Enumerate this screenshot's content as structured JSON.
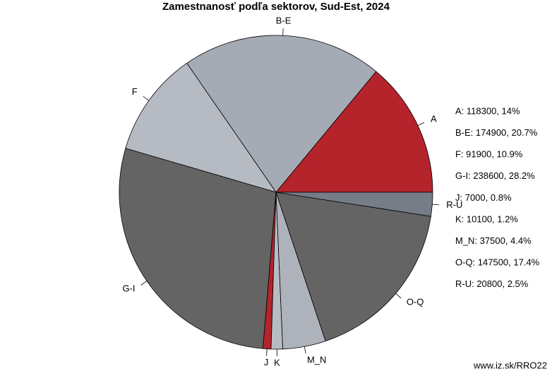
{
  "chart_data": {
    "type": "pie",
    "title": "Zamestnanosť podľa sektorov, Sud-Est, 2024",
    "categories": [
      "A",
      "B-E",
      "F",
      "G-I",
      "J",
      "K",
      "M_N",
      "O-Q",
      "R-U"
    ],
    "values": [
      118300,
      174900,
      91900,
      238600,
      7000,
      10100,
      37500,
      147500,
      20800
    ],
    "value_labels": [
      "A: 118300, 14%",
      "B-E: 174900, 20.7%",
      "F: 91900, 10.9%",
      "G-I: 238600, 28.2%",
      "J: 7000, 0.8%",
      "K: 10100, 1.2%",
      "M_N: 37500, 4.4%",
      "O-Q: 147500, 17.4%",
      "R-U: 20800, 2.5%"
    ],
    "colors": [
      "#b5232b",
      "#a5abb4",
      "#b6bbc3",
      "#646464",
      "#b5232b",
      "#b8bcc4",
      "#aeb3bb",
      "#646464",
      "#767d86"
    ],
    "legend": "right",
    "source": "www.iz.sk/RRO22"
  }
}
